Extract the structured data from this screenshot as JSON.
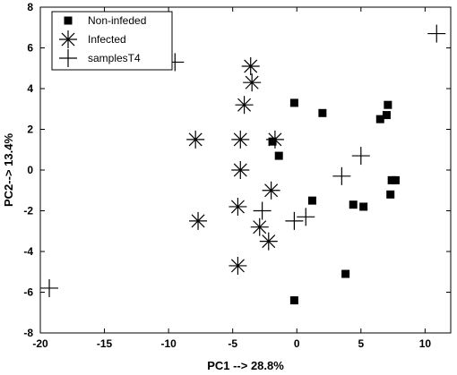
{
  "chart_data": {
    "type": "scatter",
    "xlabel": "PC1 --> 28.8%",
    "ylabel": "PC2--> 13.4%",
    "xlim": [
      -20,
      12
    ],
    "ylim": [
      -8,
      8
    ],
    "xticks": [
      -20,
      -15,
      -10,
      -5,
      0,
      5,
      10
    ],
    "yticks": [
      -8,
      -6,
      -4,
      -2,
      0,
      2,
      4,
      6,
      8
    ],
    "grid": false,
    "legend_position": "top-left",
    "series": [
      {
        "name": "Non-infeded",
        "marker": "square",
        "color": "#000000",
        "x": [
          -0.2,
          -1.9,
          -1.4,
          2.0,
          7.1,
          6.5,
          7.0,
          7.4,
          7.7,
          7.3,
          1.2,
          4.4,
          5.2,
          3.8,
          -0.2
        ],
        "y": [
          3.3,
          1.4,
          0.7,
          2.8,
          3.2,
          2.5,
          2.7,
          -0.5,
          -0.5,
          -1.2,
          -1.5,
          -1.7,
          -1.8,
          -5.1,
          -6.4
        ]
      },
      {
        "name": "Infected",
        "marker": "asterisk",
        "color": "#000000",
        "x": [
          -3.6,
          -3.5,
          -4.1,
          -7.9,
          -4.4,
          -1.7,
          -4.4,
          -2.0,
          -4.6,
          -7.7,
          -2.9,
          -2.2,
          -4.6
        ],
        "y": [
          5.1,
          4.3,
          3.2,
          1.5,
          1.5,
          1.5,
          0.0,
          -1.0,
          -1.8,
          -2.5,
          -2.8,
          -3.5,
          -4.7
        ]
      },
      {
        "name": "samplesT4",
        "marker": "plus",
        "color": "#000000",
        "x": [
          10.9,
          -9.5,
          5.0,
          3.5,
          -2.7,
          -0.2,
          0.7,
          -19.3
        ],
        "y": [
          6.7,
          5.3,
          0.7,
          -0.3,
          -2.0,
          -2.5,
          -2.3,
          -5.8
        ]
      }
    ]
  }
}
